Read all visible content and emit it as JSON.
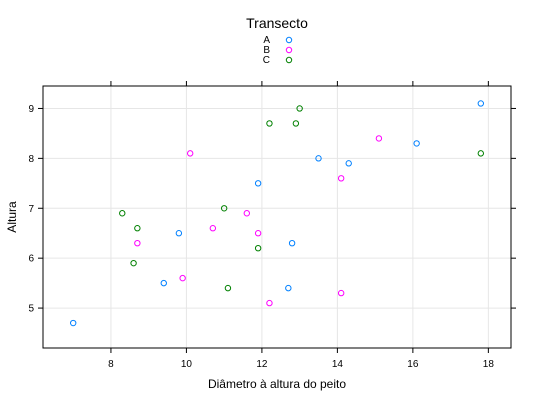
{
  "chart_data": {
    "type": "scatter",
    "title": "",
    "xlabel": "Diâmetro à altura do peito",
    "ylabel": "Altura",
    "xlim": [
      6.2,
      18.6
    ],
    "ylim": [
      4.2,
      9.45
    ],
    "xticks": [
      8,
      10,
      12,
      14,
      16,
      18
    ],
    "yticks": [
      5,
      6,
      7,
      8,
      9
    ],
    "grid": true,
    "legend": {
      "title": "Transecto",
      "placement": "top-center",
      "entries": [
        "A",
        "B",
        "C"
      ]
    },
    "series": [
      {
        "name": "A",
        "color": "#0080ff",
        "points": [
          [
            7.0,
            4.7
          ],
          [
            9.4,
            5.5
          ],
          [
            9.8,
            6.5
          ],
          [
            11.9,
            7.5
          ],
          [
            12.7,
            5.4
          ],
          [
            12.8,
            6.3
          ],
          [
            13.5,
            8.0
          ],
          [
            14.3,
            7.9
          ],
          [
            16.1,
            8.3
          ],
          [
            17.8,
            9.1
          ]
        ]
      },
      {
        "name": "B",
        "color": "#ff00ff",
        "points": [
          [
            8.7,
            6.3
          ],
          [
            9.9,
            5.6
          ],
          [
            10.1,
            8.1
          ],
          [
            10.7,
            6.6
          ],
          [
            11.6,
            6.9
          ],
          [
            11.9,
            6.5
          ],
          [
            12.2,
            5.1
          ],
          [
            14.1,
            7.6
          ],
          [
            14.1,
            5.3
          ],
          [
            15.1,
            8.4
          ]
        ]
      },
      {
        "name": "C",
        "color": "#008000",
        "points": [
          [
            8.3,
            6.9
          ],
          [
            8.6,
            5.9
          ],
          [
            8.7,
            6.6
          ],
          [
            11.0,
            7.0
          ],
          [
            11.1,
            5.4
          ],
          [
            11.9,
            6.2
          ],
          [
            12.2,
            8.7
          ],
          [
            12.9,
            8.7
          ],
          [
            13.0,
            9.0
          ],
          [
            17.8,
            8.1
          ]
        ]
      }
    ]
  }
}
